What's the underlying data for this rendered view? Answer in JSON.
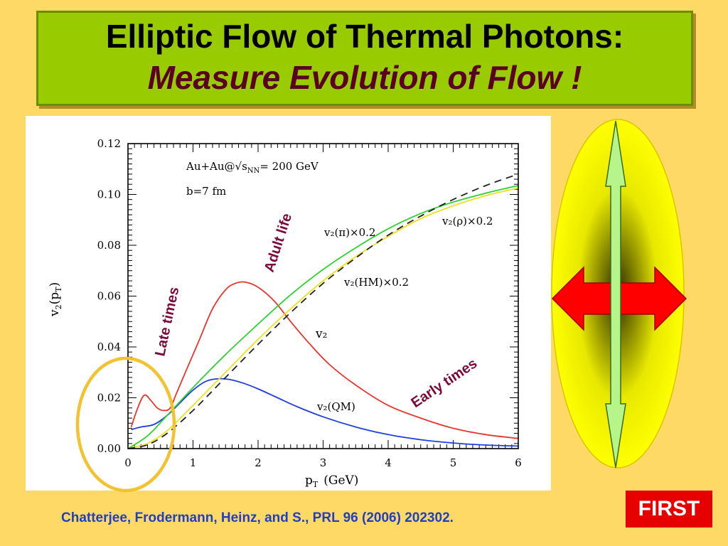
{
  "slide": {
    "title_line1": "Elliptic Flow of Thermal Photons:",
    "title_line2": "Measure Evolution of Flow !",
    "citation": "Chatterjee, Frodermann,  Heinz, and S., PRL 96 (2006) 202302.",
    "first_badge": "FIRST",
    "callouts": {
      "late": "Late times",
      "adult": "Adult life",
      "early": "Early times"
    }
  },
  "colors": {
    "background": "#ffd966",
    "title_box": "#99cc00",
    "callout_text": "#7a0a3c",
    "circle": "#f2c230",
    "ellipse_fill": "#ffff00",
    "red_arrow": "#ff0000",
    "green_arrow": "#b5f58a",
    "citation": "#1f3fc4"
  },
  "chart_data": {
    "type": "line",
    "xlabel": "p",
    "xlabel_sub": "T",
    "xlabel_unit": "(GeV)",
    "ylabel": "v",
    "ylabel_sub": "2",
    "ylabel_arg": "(p",
    "ylabel_arg_sub": "T",
    "xlim": [
      0,
      6
    ],
    "ylim": [
      0,
      0.12
    ],
    "x_ticks": [
      "0",
      "1",
      "2",
      "3",
      "4",
      "5",
      "6"
    ],
    "y_ticks": [
      "0.00",
      "0.02",
      "0.04",
      "0.06",
      "0.08",
      "0.10",
      "0.12"
    ],
    "annotations": [
      "Au+Au@√s",
      "NN",
      "= 200 GeV",
      "b=7 fm"
    ],
    "series": [
      {
        "name": "v₂",
        "color": "#e8352f",
        "dash": "",
        "points": [
          [
            0.05,
            0.0085
          ],
          [
            0.15,
            0.016
          ],
          [
            0.25,
            0.021
          ],
          [
            0.35,
            0.019
          ],
          [
            0.45,
            0.016
          ],
          [
            0.55,
            0.015
          ],
          [
            0.65,
            0.016
          ],
          [
            0.75,
            0.022
          ],
          [
            0.9,
            0.031
          ],
          [
            1.1,
            0.043
          ],
          [
            1.3,
            0.055
          ],
          [
            1.5,
            0.0625
          ],
          [
            1.65,
            0.065
          ],
          [
            1.8,
            0.0655
          ],
          [
            2.0,
            0.0635
          ],
          [
            2.25,
            0.058
          ],
          [
            2.5,
            0.05
          ],
          [
            2.8,
            0.041
          ],
          [
            3.1,
            0.033
          ],
          [
            3.5,
            0.025
          ],
          [
            4.0,
            0.017
          ],
          [
            4.5,
            0.012
          ],
          [
            5.0,
            0.008
          ],
          [
            5.5,
            0.0055
          ],
          [
            6.0,
            0.004
          ]
        ]
      },
      {
        "name": "v₂(QM)",
        "color": "#1f3fe0",
        "dash": "",
        "points": [
          [
            0.05,
            0.0075
          ],
          [
            0.2,
            0.0085
          ],
          [
            0.4,
            0.0095
          ],
          [
            0.6,
            0.013
          ],
          [
            0.8,
            0.018
          ],
          [
            1.0,
            0.023
          ],
          [
            1.2,
            0.0265
          ],
          [
            1.4,
            0.0275
          ],
          [
            1.6,
            0.027
          ],
          [
            1.8,
            0.0255
          ],
          [
            2.0,
            0.0235
          ],
          [
            2.3,
            0.02
          ],
          [
            2.6,
            0.0165
          ],
          [
            3.0,
            0.0125
          ],
          [
            3.5,
            0.0085
          ],
          [
            4.0,
            0.0055
          ],
          [
            4.5,
            0.0035
          ],
          [
            5.0,
            0.0022
          ],
          [
            5.5,
            0.0014
          ],
          [
            6.0,
            0.001
          ]
        ]
      },
      {
        "name": "v₂(π)×0.2",
        "color": "#2ed12e",
        "dash": "",
        "points": [
          [
            0.0,
            0.0
          ],
          [
            0.3,
            0.005
          ],
          [
            0.6,
            0.013
          ],
          [
            1.0,
            0.024
          ],
          [
            1.5,
            0.037
          ],
          [
            2.0,
            0.049
          ],
          [
            2.5,
            0.0605
          ],
          [
            3.0,
            0.0705
          ],
          [
            3.5,
            0.079
          ],
          [
            4.0,
            0.0865
          ],
          [
            4.5,
            0.0925
          ],
          [
            5.0,
            0.097
          ],
          [
            5.5,
            0.1005
          ],
          [
            6.0,
            0.1035
          ]
        ]
      },
      {
        "name": "v₂(ρ)×0.2",
        "color": "#f0e020",
        "dash": "",
        "points": [
          [
            0.0,
            0.0
          ],
          [
            0.3,
            0.002
          ],
          [
            0.6,
            0.007
          ],
          [
            1.0,
            0.017
          ],
          [
            1.5,
            0.03
          ],
          [
            2.0,
            0.043
          ],
          [
            2.5,
            0.055
          ],
          [
            3.0,
            0.066
          ],
          [
            3.5,
            0.0755
          ],
          [
            4.0,
            0.0835
          ],
          [
            4.5,
            0.0905
          ],
          [
            5.0,
            0.0955
          ],
          [
            5.5,
            0.0995
          ],
          [
            6.0,
            0.1025
          ]
        ]
      },
      {
        "name": "v₂(HM)×0.2",
        "color": "#222222",
        "dash": "10 7",
        "points": [
          [
            0.0,
            0.0
          ],
          [
            0.3,
            0.0015
          ],
          [
            0.6,
            0.006
          ],
          [
            1.0,
            0.015
          ],
          [
            1.5,
            0.028
          ],
          [
            2.0,
            0.041
          ],
          [
            2.5,
            0.0535
          ],
          [
            3.0,
            0.065
          ],
          [
            3.5,
            0.075
          ],
          [
            4.0,
            0.084
          ],
          [
            4.5,
            0.0915
          ],
          [
            5.0,
            0.098
          ],
          [
            5.5,
            0.1035
          ],
          [
            6.0,
            0.108
          ]
        ]
      }
    ]
  }
}
